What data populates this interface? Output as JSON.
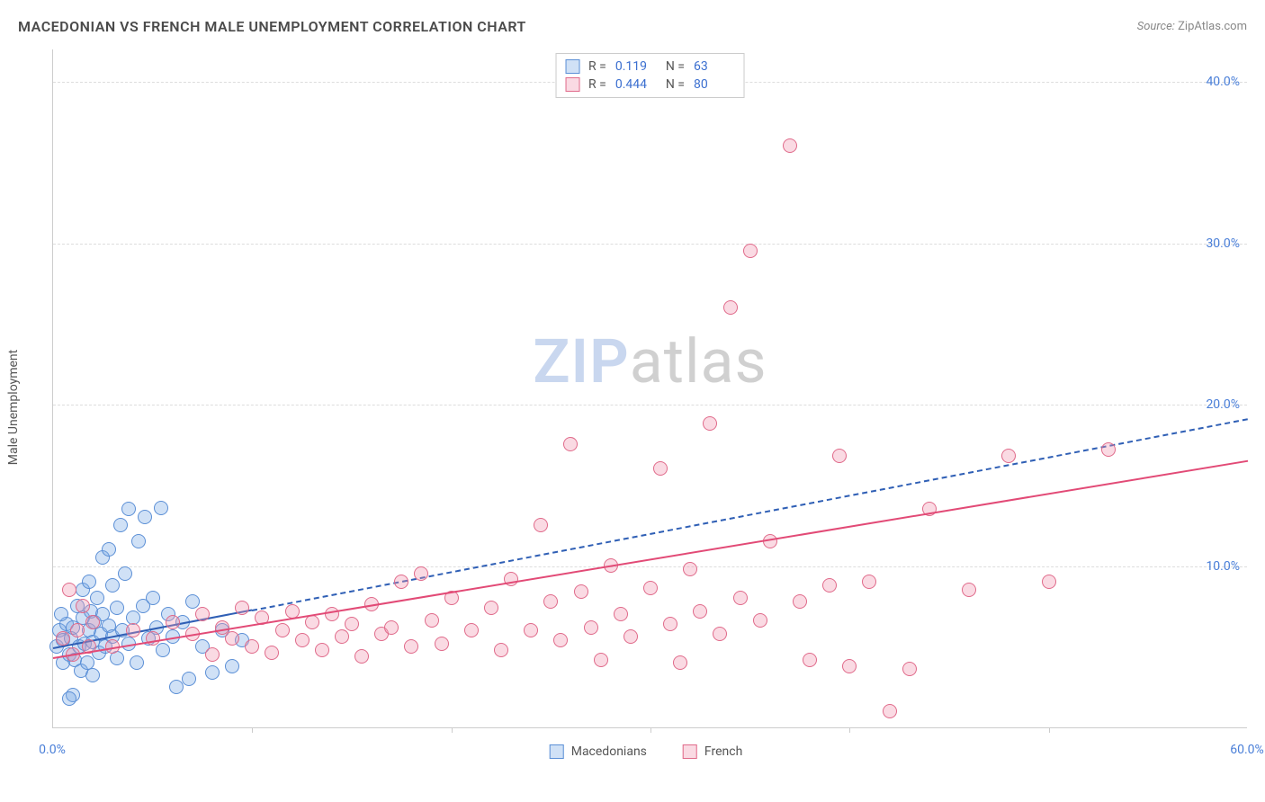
{
  "title": "MACEDONIAN VS FRENCH MALE UNEMPLOYMENT CORRELATION CHART",
  "source_label": "Source:",
  "source_name": "ZipAtlas.com",
  "y_axis_label": "Male Unemployment",
  "watermark": {
    "part1": "ZIP",
    "part2": "atlas"
  },
  "chart": {
    "type": "scatter",
    "xlim": [
      0,
      60
    ],
    "ylim": [
      0,
      42
    ],
    "y_ticks": [
      10,
      20,
      30,
      40
    ],
    "y_tick_labels": [
      "10.0%",
      "20.0%",
      "30.0%",
      "40.0%"
    ],
    "x_tick_labels": {
      "0": "0.0%",
      "60": "60.0%"
    },
    "x_vticks": [
      10,
      20,
      30,
      40,
      50
    ],
    "grid_color": "#dddddd",
    "axis_color": "#cccccc",
    "tick_label_color": "#4a7fd8",
    "background_color": "#ffffff",
    "marker_radius": 8,
    "series": [
      {
        "key": "macedonians",
        "label": "Macedonians",
        "fill": "rgba(120,170,230,0.35)",
        "stroke": "#5b8fd6",
        "trend_color": "#2f5fb5",
        "trend_solid_end_x": 10,
        "trend_dashed_end_x": 60,
        "trend_y_at_0": 5.0,
        "trend_y_at_60": 19.2,
        "R": "0.119",
        "N": "63",
        "points": [
          [
            0.2,
            5.0
          ],
          [
            0.3,
            6.0
          ],
          [
            0.5,
            5.4
          ],
          [
            0.5,
            4.0
          ],
          [
            0.7,
            6.4
          ],
          [
            0.8,
            4.5
          ],
          [
            0.4,
            7.0
          ],
          [
            0.9,
            5.5
          ],
          [
            1.0,
            6.2
          ],
          [
            1.1,
            4.2
          ],
          [
            1.2,
            7.5
          ],
          [
            1.3,
            5.0
          ],
          [
            1.4,
            3.5
          ],
          [
            1.5,
            6.8
          ],
          [
            1.5,
            8.5
          ],
          [
            1.6,
            5.2
          ],
          [
            1.7,
            4.0
          ],
          [
            1.8,
            6.0
          ],
          [
            1.8,
            9.0
          ],
          [
            1.9,
            7.2
          ],
          [
            2.0,
            5.3
          ],
          [
            2.0,
            3.2
          ],
          [
            2.1,
            6.5
          ],
          [
            2.2,
            8.0
          ],
          [
            2.3,
            4.6
          ],
          [
            2.4,
            5.8
          ],
          [
            2.5,
            10.5
          ],
          [
            2.5,
            7.0
          ],
          [
            2.6,
            5.0
          ],
          [
            2.8,
            6.3
          ],
          [
            2.8,
            11.0
          ],
          [
            3.0,
            5.6
          ],
          [
            3.0,
            8.8
          ],
          [
            3.2,
            4.3
          ],
          [
            3.2,
            7.4
          ],
          [
            3.4,
            12.5
          ],
          [
            3.5,
            6.0
          ],
          [
            3.6,
            9.5
          ],
          [
            3.8,
            5.2
          ],
          [
            3.8,
            13.5
          ],
          [
            4.0,
            6.8
          ],
          [
            4.2,
            4.0
          ],
          [
            4.3,
            11.5
          ],
          [
            4.5,
            7.5
          ],
          [
            4.6,
            13.0
          ],
          [
            4.8,
            5.5
          ],
          [
            5.0,
            8.0
          ],
          [
            5.2,
            6.2
          ],
          [
            5.4,
            13.6
          ],
          [
            5.5,
            4.8
          ],
          [
            5.8,
            7.0
          ],
          [
            6.0,
            5.6
          ],
          [
            6.2,
            2.5
          ],
          [
            6.5,
            6.5
          ],
          [
            6.8,
            3.0
          ],
          [
            7.0,
            7.8
          ],
          [
            7.5,
            5.0
          ],
          [
            8.0,
            3.4
          ],
          [
            8.5,
            6.0
          ],
          [
            9.0,
            3.8
          ],
          [
            9.5,
            5.4
          ],
          [
            1.0,
            2.0
          ],
          [
            0.8,
            1.8
          ]
        ]
      },
      {
        "key": "french",
        "label": "French",
        "fill": "rgba(240,150,175,0.35)",
        "stroke": "#e06a8a",
        "trend_color": "#e24a76",
        "trend_solid_end_x": 60,
        "trend_dashed_end_x": 60,
        "trend_y_at_0": 4.4,
        "trend_y_at_60": 16.6,
        "R": "0.444",
        "N": "80",
        "points": [
          [
            0.5,
            5.5
          ],
          [
            0.8,
            8.5
          ],
          [
            1.0,
            4.5
          ],
          [
            1.2,
            6.0
          ],
          [
            1.5,
            7.5
          ],
          [
            1.8,
            5.0
          ],
          [
            2.0,
            6.5
          ],
          [
            3.0,
            5.0
          ],
          [
            4.0,
            6.0
          ],
          [
            5.0,
            5.5
          ],
          [
            6.0,
            6.5
          ],
          [
            7.0,
            5.8
          ],
          [
            7.5,
            7.0
          ],
          [
            8.0,
            4.5
          ],
          [
            8.5,
            6.2
          ],
          [
            9.0,
            5.5
          ],
          [
            9.5,
            7.4
          ],
          [
            10.0,
            5.0
          ],
          [
            10.5,
            6.8
          ],
          [
            11.0,
            4.6
          ],
          [
            11.5,
            6.0
          ],
          [
            12.0,
            7.2
          ],
          [
            12.5,
            5.4
          ],
          [
            13.0,
            6.5
          ],
          [
            13.5,
            4.8
          ],
          [
            14.0,
            7.0
          ],
          [
            14.5,
            5.6
          ],
          [
            15.0,
            6.4
          ],
          [
            15.5,
            4.4
          ],
          [
            16.0,
            7.6
          ],
          [
            16.5,
            5.8
          ],
          [
            17.0,
            6.2
          ],
          [
            17.5,
            9.0
          ],
          [
            18.0,
            5.0
          ],
          [
            18.5,
            9.5
          ],
          [
            19.0,
            6.6
          ],
          [
            19.5,
            5.2
          ],
          [
            20.0,
            8.0
          ],
          [
            21.0,
            6.0
          ],
          [
            22.0,
            7.4
          ],
          [
            22.5,
            4.8
          ],
          [
            23.0,
            9.2
          ],
          [
            24.0,
            6.0
          ],
          [
            24.5,
            12.5
          ],
          [
            25.0,
            7.8
          ],
          [
            25.5,
            5.4
          ],
          [
            26.0,
            17.5
          ],
          [
            26.5,
            8.4
          ],
          [
            27.0,
            6.2
          ],
          [
            27.5,
            4.2
          ],
          [
            28.0,
            10.0
          ],
          [
            28.5,
            7.0
          ],
          [
            29.0,
            5.6
          ],
          [
            30.0,
            8.6
          ],
          [
            30.5,
            16.0
          ],
          [
            31.0,
            6.4
          ],
          [
            31.5,
            4.0
          ],
          [
            32.0,
            9.8
          ],
          [
            32.5,
            7.2
          ],
          [
            33.0,
            18.8
          ],
          [
            33.5,
            5.8
          ],
          [
            34.0,
            26.0
          ],
          [
            34.5,
            8.0
          ],
          [
            35.0,
            29.5
          ],
          [
            35.5,
            6.6
          ],
          [
            36.0,
            11.5
          ],
          [
            37.0,
            36.0
          ],
          [
            37.5,
            7.8
          ],
          [
            38.0,
            4.2
          ],
          [
            39.0,
            8.8
          ],
          [
            39.5,
            16.8
          ],
          [
            40.0,
            3.8
          ],
          [
            41.0,
            9.0
          ],
          [
            42.0,
            1.0
          ],
          [
            44.0,
            13.5
          ],
          [
            46.0,
            8.5
          ],
          [
            48.0,
            16.8
          ],
          [
            50.0,
            9.0
          ],
          [
            53.0,
            17.2
          ],
          [
            43.0,
            3.6
          ]
        ]
      }
    ]
  },
  "legend_stats_labels": {
    "R": "R =",
    "N": "N ="
  }
}
